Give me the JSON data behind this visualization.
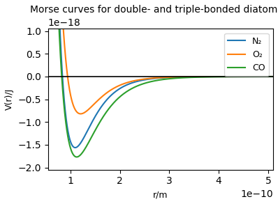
{
  "title": "Morse curves for double- and triple-bonded diatomics",
  "xlabel": "r/m",
  "ylabel": "V(r)/J",
  "xlim": [
    5.5e-11,
    5.1e-10
  ],
  "ylim": [
    -2.05e-18,
    1.05e-18
  ],
  "hline_y": 0,
  "molecules": [
    {
      "name": "N₂",
      "color": "#1f77b4",
      "De": 1.5636e-18,
      "a": 26890000000.0,
      "re": 1.098e-10
    },
    {
      "name": "O₂",
      "color": "#ff7f0e",
      "De": 8.196e-19,
      "a": 26300000000.0,
      "re": 1.208e-10
    },
    {
      "name": "CO",
      "color": "#2ca02c",
      "De": 1.7693e-18,
      "a": 22940000000.0,
      "re": 1.128e-10
    }
  ],
  "r_start": 5.5e-11,
  "r_end": 5.1e-10,
  "n_points": 2000,
  "legend_loc": "upper right",
  "background_color": "#ffffff",
  "figsize": [
    3.98,
    2.93
  ],
  "dpi": 100
}
